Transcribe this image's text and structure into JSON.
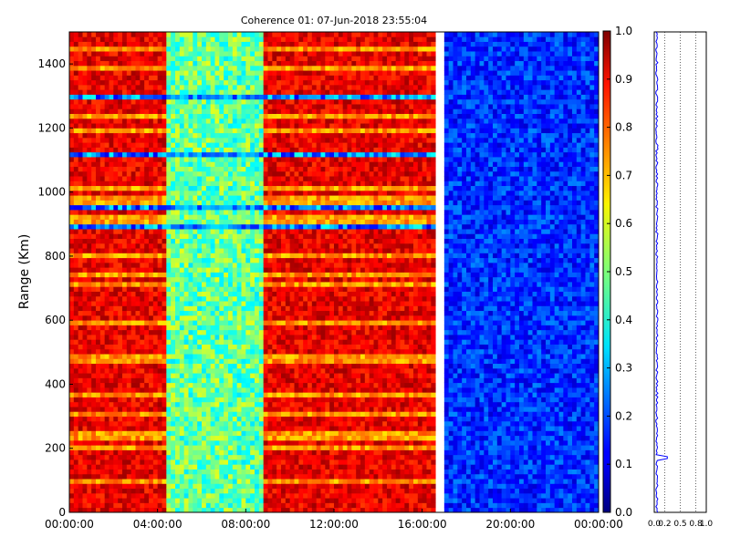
{
  "chart_data": {
    "type": "heatmap",
    "title": "Coherence 01: 07-Jun-2018 23:55:04",
    "ylabel": "Range (Km)",
    "xlabel": "",
    "xlim": [
      "00:00:00",
      "24:00:00"
    ],
    "ylim": [
      0,
      1500
    ],
    "x_ticks": [
      "00:00:00",
      "04:00:00",
      "08:00:00",
      "12:00:00",
      "16:00:00",
      "20:00:00",
      "00:00:00"
    ],
    "y_ticks": [
      "0",
      "200",
      "400",
      "600",
      "800",
      "1000",
      "1200",
      "1400"
    ],
    "colormap": "jet",
    "colorbar": {
      "vmin": 0.0,
      "vmax": 1.0,
      "ticks": [
        "0.0",
        "0.1",
        "0.2",
        "0.3",
        "0.4",
        "0.5",
        "0.6",
        "0.7",
        "0.8",
        "0.9",
        "1.0"
      ]
    },
    "data_description_regions": [
      {
        "from": "00:00:00",
        "to": "04:30:00",
        "typical_coherence": 0.85
      },
      {
        "from": "04:30:00",
        "to": "08:50:00",
        "typical_coherence": 0.45
      },
      {
        "from": "08:50:00",
        "to": "16:40:00",
        "typical_coherence": 0.85
      },
      {
        "from": "16:40:00",
        "to": "17:00:00",
        "typical_coherence": null
      },
      {
        "from": "17:00:00",
        "to": "24:00:00",
        "typical_coherence": 0.15
      }
    ],
    "profile_panel": {
      "x_ticks": [
        "0.0",
        "0.2",
        "0.5",
        "0.8",
        "1.0"
      ],
      "xlim": [
        0,
        1.0
      ],
      "ylim": [
        0,
        1500
      ],
      "typical_value": 0.05,
      "spike": {
        "range_km": 170,
        "value": 0.25
      }
    }
  }
}
